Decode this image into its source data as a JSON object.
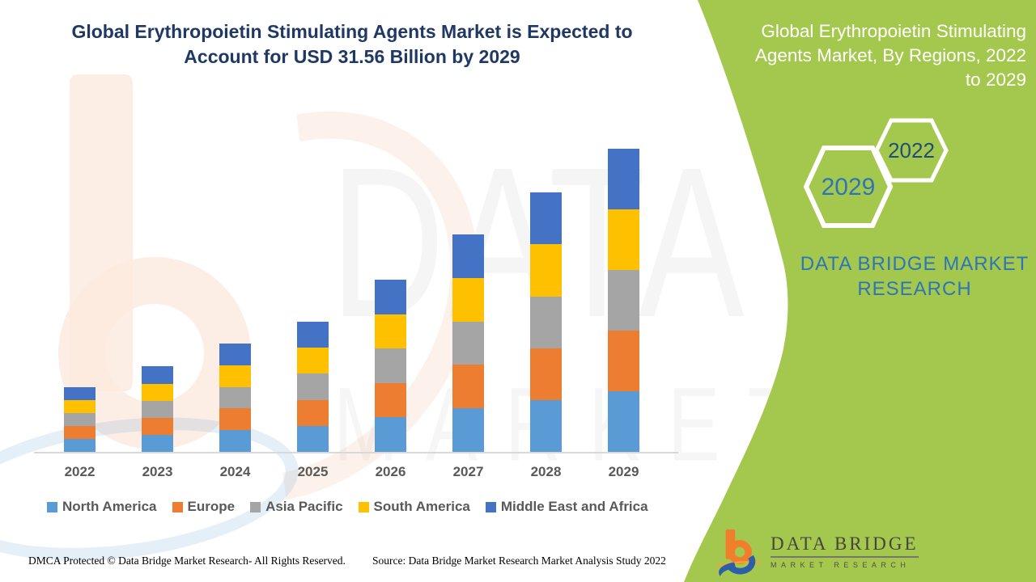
{
  "header": {
    "title_line1": "Global Erythropoietin Stimulating Agents Market is Expected to",
    "title_line2": "Account for USD 31.56 Billion by 2029",
    "title_color": "#1F3864"
  },
  "panel": {
    "title_lines": [
      "Global Erythropoietin Stimulating",
      "Agents Market, By Regions, 2022",
      "to 2029"
    ],
    "hexagons": [
      {
        "label": "2022"
      },
      {
        "label": "2029"
      }
    ],
    "brand_line1": "DATA BRIDGE MARKET",
    "brand_line2": "RESEARCH",
    "colors": {
      "background": "#A4C84D",
      "title_text": "#FFFFFF",
      "hex_2022_text": "#1F4E79",
      "hex_2029_text": "#2E75B6",
      "brand_text": "#2E75B6",
      "hex_stroke": "#FFFFFF"
    }
  },
  "chart_data": {
    "type": "bar",
    "stacked": true,
    "title": "Global Erythropoietin Stimulating Agents Market, By Regions, 2022 to 2029",
    "unit": "USD Billion",
    "categories": [
      "2022",
      "2023",
      "2024",
      "2025",
      "2026",
      "2027",
      "2028",
      "2029"
    ],
    "series": [
      {
        "name": "North America",
        "color": "#5B9BD5",
        "values": [
          1.35,
          1.78,
          2.26,
          2.71,
          3.59,
          4.53,
          5.4,
          6.31
        ]
      },
      {
        "name": "Europe",
        "color": "#ED7D31",
        "values": [
          1.35,
          1.78,
          2.26,
          2.71,
          3.59,
          4.53,
          5.4,
          6.31
        ]
      },
      {
        "name": "Asia Pacific",
        "color": "#A5A5A5",
        "values": [
          1.35,
          1.78,
          2.26,
          2.71,
          3.59,
          4.53,
          5.4,
          6.31
        ]
      },
      {
        "name": "South America",
        "color": "#FFC000",
        "values": [
          1.35,
          1.78,
          2.26,
          2.71,
          3.59,
          4.53,
          5.4,
          6.31
        ]
      },
      {
        "name": "Middle East and Africa",
        "color": "#4472C4",
        "values": [
          1.35,
          1.78,
          2.26,
          2.71,
          3.59,
          4.53,
          5.4,
          6.31
        ]
      }
    ],
    "totals": [
      6.73,
      8.92,
      11.28,
      13.55,
      17.93,
      22.64,
      27.02,
      31.56
    ],
    "ylim": [
      0,
      33.6
    ],
    "gridlines": false,
    "axis_labels_shown": false,
    "legend_position": "bottom",
    "key_annotation": "31.56 Billion by 2029"
  },
  "watermark": {
    "line1": "DATA BRIDGE",
    "line2": "MARKET RESEARCH"
  },
  "footer": {
    "dmca": "DMCA Protected © Data Bridge Market Research- All Rights Reserved.",
    "source": "Source: Data Bridge Market Research Market Analysis Study 2022",
    "logo_name": "DATA BRIDGE",
    "logo_sub": "MARKET RESEARCH"
  }
}
